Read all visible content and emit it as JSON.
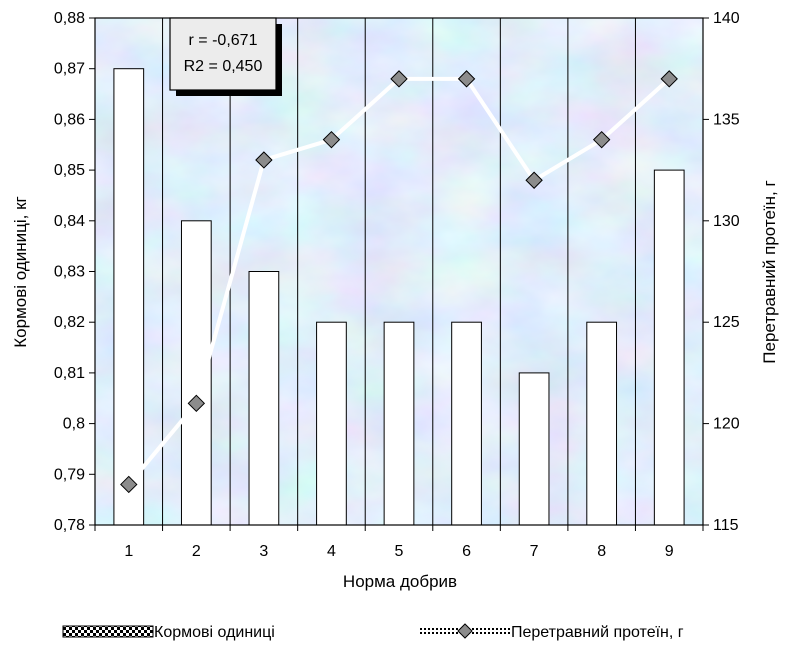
{
  "chart_data": {
    "type": "bar",
    "categories": [
      "1",
      "2",
      "3",
      "4",
      "5",
      "6",
      "7",
      "8",
      "9"
    ],
    "xlabel": "Норма добрив",
    "ylabel_left": "Кормові одиниці, кг",
    "ylabel_right": "Перетравний протеїн, г",
    "ylim_left": [
      0.78,
      0.88
    ],
    "ylim_right": [
      115,
      140
    ],
    "yticks_left": [
      "0,78",
      "0,79",
      "0,8",
      "0,81",
      "0,82",
      "0,83",
      "0,84",
      "0,85",
      "0,86",
      "0,87",
      "0,88"
    ],
    "yticks_right": [
      "115",
      "120",
      "125",
      "130",
      "135",
      "140"
    ],
    "series": [
      {
        "name": "Кормові  одиниці",
        "type": "bar",
        "axis": "left",
        "values": [
          0.87,
          0.84,
          0.83,
          0.82,
          0.82,
          0.82,
          0.81,
          0.82,
          0.85
        ]
      },
      {
        "name": "Перетравний протеїн, г",
        "type": "line",
        "axis": "right",
        "values": [
          117,
          121,
          133,
          134,
          137,
          137,
          132,
          134,
          137
        ]
      }
    ],
    "annotation": {
      "r": "r = -0,671",
      "r2": "R2 = 0,450"
    },
    "grid": "vertical",
    "legend": "bottom"
  },
  "colors": {
    "bar_fill": "#ffffff",
    "line": "#ffffff",
    "marker": "#8c8c8c",
    "plot_bg": "#b9d3ec"
  }
}
